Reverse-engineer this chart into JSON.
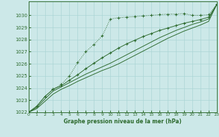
{
  "background_color": "#cce8e8",
  "grid_color": "#aad4d4",
  "line_color": "#2d6a2d",
  "marker_color": "#2d6a2d",
  "xlabel": "Graphe pression niveau de la mer (hPa)",
  "ylim": [
    1022,
    1031
  ],
  "xlim": [
    0,
    23
  ],
  "yticks": [
    1022,
    1023,
    1024,
    1025,
    1026,
    1027,
    1028,
    1029,
    1030
  ],
  "xticks": [
    0,
    1,
    2,
    3,
    4,
    5,
    6,
    7,
    8,
    9,
    10,
    11,
    12,
    13,
    14,
    15,
    16,
    17,
    18,
    19,
    20,
    21,
    22,
    23
  ],
  "series1_x": [
    0,
    1,
    2,
    3,
    4,
    5,
    6,
    7,
    8,
    9,
    10,
    11,
    12,
    13,
    14,
    15,
    16,
    17,
    18,
    19,
    20,
    21,
    22,
    23
  ],
  "series1_y": [
    1022.0,
    1022.5,
    1023.3,
    1023.9,
    1024.3,
    1025.0,
    1026.1,
    1027.0,
    1027.6,
    1028.3,
    1029.7,
    1029.8,
    1029.85,
    1029.9,
    1029.95,
    1030.0,
    1030.05,
    1030.1,
    1030.1,
    1030.15,
    1030.0,
    1030.0,
    1030.05,
    1030.9
  ],
  "series2_x": [
    0,
    1,
    2,
    3,
    4,
    5,
    6,
    7,
    8,
    9,
    10,
    11,
    12,
    13,
    14,
    15,
    16,
    17,
    18,
    19,
    20,
    21,
    22,
    23
  ],
  "series2_y": [
    1022.0,
    1022.5,
    1023.3,
    1023.9,
    1024.2,
    1024.65,
    1025.1,
    1025.6,
    1026.05,
    1026.5,
    1026.9,
    1027.3,
    1027.65,
    1027.95,
    1028.25,
    1028.5,
    1028.75,
    1028.95,
    1029.15,
    1029.35,
    1029.5,
    1029.65,
    1029.85,
    1030.9
  ],
  "series3_x": [
    0,
    1,
    2,
    3,
    4,
    5,
    6,
    7,
    8,
    9,
    10,
    11,
    12,
    13,
    14,
    15,
    16,
    17,
    18,
    19,
    20,
    21,
    22,
    23
  ],
  "series3_y": [
    1022.0,
    1022.4,
    1023.1,
    1023.75,
    1024.1,
    1024.45,
    1024.8,
    1025.15,
    1025.45,
    1025.75,
    1026.05,
    1026.4,
    1026.75,
    1027.1,
    1027.45,
    1027.8,
    1028.15,
    1028.45,
    1028.75,
    1029.0,
    1029.25,
    1029.45,
    1029.7,
    1030.9
  ],
  "series4_x": [
    0,
    1,
    2,
    3,
    4,
    5,
    6,
    7,
    8,
    9,
    10,
    11,
    12,
    13,
    14,
    15,
    16,
    17,
    18,
    19,
    20,
    21,
    22,
    23
  ],
  "series4_y": [
    1022.0,
    1022.3,
    1022.9,
    1023.5,
    1023.9,
    1024.2,
    1024.55,
    1024.85,
    1025.15,
    1025.45,
    1025.7,
    1026.0,
    1026.35,
    1026.7,
    1027.05,
    1027.4,
    1027.75,
    1028.1,
    1028.4,
    1028.7,
    1028.95,
    1029.2,
    1029.5,
    1030.9
  ]
}
